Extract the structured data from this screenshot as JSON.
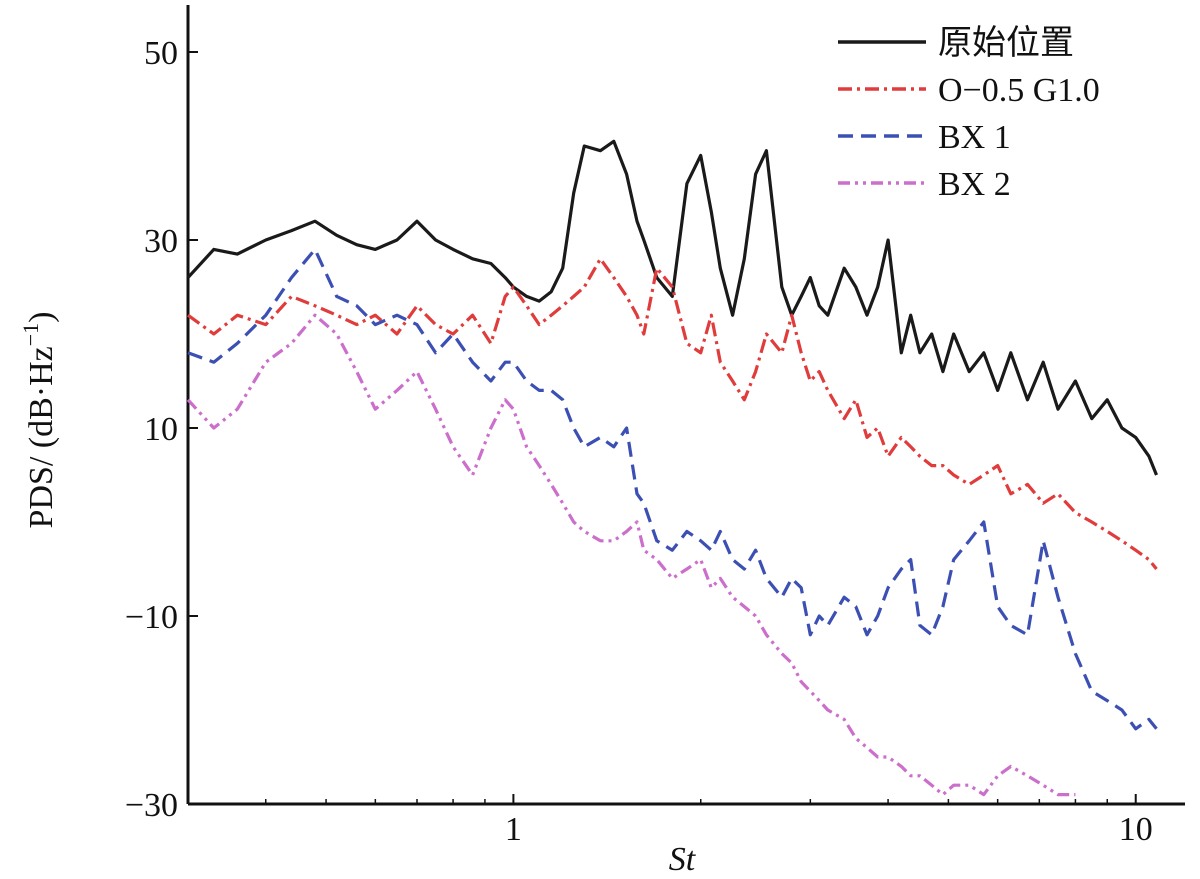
{
  "chart_data": {
    "type": "line",
    "xlabel": "St",
    "ylabel_main": "PDS/ (dB·Hz",
    "ylabel_sup": "−1",
    "ylabel_close": ")",
    "xscale": "log",
    "xlim": [
      0.3,
      12
    ],
    "ylim": [
      -30,
      55
    ],
    "x_ticks": [
      {
        "value": 1,
        "label": "1"
      },
      {
        "value": 10,
        "label": "10"
      }
    ],
    "y_ticks": [
      {
        "value": 50,
        "label": "50"
      },
      {
        "value": 30,
        "label": "30"
      },
      {
        "value": 10,
        "label": "10"
      },
      {
        "value": -10,
        "label": "−10"
      },
      {
        "value": -30,
        "label": "−30"
      }
    ],
    "grid": false,
    "legend_position": "top-right",
    "series": [
      {
        "name": "原始位置",
        "color": "#1a1a1a",
        "dash": "solid",
        "x": [
          0.3,
          0.33,
          0.36,
          0.4,
          0.44,
          0.48,
          0.52,
          0.56,
          0.6,
          0.65,
          0.7,
          0.75,
          0.8,
          0.86,
          0.92,
          0.97,
          1.0,
          1.05,
          1.1,
          1.15,
          1.2,
          1.25,
          1.3,
          1.38,
          1.45,
          1.52,
          1.58,
          1.62,
          1.7,
          1.8,
          1.9,
          2.0,
          2.08,
          2.15,
          2.25,
          2.35,
          2.45,
          2.55,
          2.7,
          2.8,
          2.9,
          3.0,
          3.1,
          3.2,
          3.4,
          3.55,
          3.7,
          3.85,
          4.0,
          4.2,
          4.35,
          4.5,
          4.7,
          4.9,
          5.1,
          5.4,
          5.7,
          6.0,
          6.3,
          6.7,
          7.1,
          7.5,
          8.0,
          8.5,
          9.0,
          9.5,
          10.0,
          10.5,
          10.8
        ],
        "y": [
          26,
          29,
          28.5,
          30,
          31,
          32,
          30.5,
          29.5,
          29,
          30,
          32,
          30,
          29,
          28,
          27.5,
          26,
          25,
          24,
          23.5,
          24.5,
          27,
          35,
          40,
          39.5,
          40.5,
          37,
          32,
          30,
          26,
          24,
          36,
          39,
          33,
          27,
          22,
          28,
          37,
          39.5,
          25,
          22,
          24,
          26,
          23,
          22,
          27,
          25,
          22,
          25,
          30,
          18,
          22,
          18,
          20,
          16,
          20,
          16,
          18,
          14,
          18,
          13,
          17,
          12,
          15,
          11,
          13,
          10,
          9,
          7,
          5
        ]
      },
      {
        "name": "O−0.5 G1.0",
        "color": "#e03c3c",
        "dash": "14,5,3,5",
        "x": [
          0.3,
          0.33,
          0.36,
          0.4,
          0.44,
          0.48,
          0.52,
          0.56,
          0.6,
          0.65,
          0.7,
          0.75,
          0.8,
          0.86,
          0.92,
          0.97,
          1.0,
          1.05,
          1.1,
          1.15,
          1.2,
          1.25,
          1.3,
          1.38,
          1.45,
          1.52,
          1.58,
          1.62,
          1.7,
          1.8,
          1.9,
          2.0,
          2.08,
          2.15,
          2.25,
          2.35,
          2.45,
          2.55,
          2.7,
          2.8,
          2.9,
          3.0,
          3.1,
          3.2,
          3.4,
          3.55,
          3.7,
          3.85,
          4.0,
          4.2,
          4.35,
          4.5,
          4.7,
          4.9,
          5.1,
          5.4,
          5.7,
          6.0,
          6.3,
          6.7,
          7.1,
          7.5,
          8.0,
          8.5,
          9.0,
          9.5,
          10.0,
          10.5,
          10.8
        ],
        "y": [
          22,
          20,
          22,
          21,
          24,
          23,
          22,
          21,
          22,
          20,
          23,
          21,
          20,
          22,
          19,
          24,
          25,
          23,
          21,
          22,
          23,
          24,
          25,
          28,
          26,
          24,
          22,
          20,
          27,
          25,
          19,
          18,
          22,
          17,
          15,
          13,
          16,
          20,
          18,
          22,
          18,
          15,
          16,
          14,
          11,
          13,
          9,
          10,
          7,
          9,
          8,
          7,
          6,
          6,
          5,
          4,
          5,
          6,
          3,
          4,
          2,
          3,
          1,
          0,
          -1,
          -2,
          -3,
          -4,
          -5
        ]
      },
      {
        "name": "BX 1",
        "color": "#3c50b4",
        "dash": "15,8",
        "x": [
          0.3,
          0.33,
          0.36,
          0.4,
          0.44,
          0.48,
          0.52,
          0.56,
          0.6,
          0.65,
          0.7,
          0.75,
          0.8,
          0.86,
          0.92,
          0.97,
          1.0,
          1.05,
          1.1,
          1.15,
          1.2,
          1.25,
          1.3,
          1.38,
          1.45,
          1.52,
          1.58,
          1.62,
          1.7,
          1.8,
          1.9,
          2.0,
          2.08,
          2.15,
          2.25,
          2.35,
          2.45,
          2.55,
          2.7,
          2.8,
          2.9,
          3.0,
          3.1,
          3.2,
          3.4,
          3.55,
          3.7,
          3.85,
          4.0,
          4.2,
          4.35,
          4.5,
          4.7,
          4.9,
          5.1,
          5.4,
          5.7,
          6.0,
          6.3,
          6.7,
          7.1,
          7.5,
          8.0,
          8.5,
          9.0,
          9.5,
          10.0,
          10.5,
          10.8
        ],
        "y": [
          18,
          17,
          19,
          22,
          26,
          29,
          24,
          23,
          21,
          22,
          21,
          18,
          20,
          17,
          15,
          17,
          17,
          15,
          14,
          14,
          13,
          10,
          8,
          9,
          8,
          10,
          3,
          2,
          -2,
          -3,
          -1,
          -2,
          -3,
          -1,
          -4,
          -5,
          -3,
          -6,
          -8,
          -6,
          -7,
          -12,
          -10,
          -11,
          -8,
          -9,
          -12,
          -10,
          -7,
          -5,
          -4,
          -11,
          -12,
          -9,
          -4,
          -2,
          0,
          -9,
          -11,
          -12,
          -2,
          -8,
          -14,
          -18,
          -19,
          -20,
          -22,
          -21,
          -22
        ]
      },
      {
        "name": "BX 2",
        "color": "#cc6ecc",
        "dash": "12,5,3,5,3,5",
        "x": [
          0.3,
          0.33,
          0.36,
          0.4,
          0.44,
          0.48,
          0.52,
          0.56,
          0.6,
          0.65,
          0.7,
          0.75,
          0.8,
          0.86,
          0.92,
          0.97,
          1.0,
          1.05,
          1.1,
          1.15,
          1.2,
          1.25,
          1.3,
          1.38,
          1.45,
          1.52,
          1.58,
          1.62,
          1.7,
          1.8,
          1.9,
          2.0,
          2.08,
          2.15,
          2.25,
          2.35,
          2.45,
          2.55,
          2.7,
          2.8,
          2.9,
          3.0,
          3.1,
          3.2,
          3.4,
          3.55,
          3.7,
          3.85,
          4.0,
          4.2,
          4.35,
          4.5,
          4.7,
          4.9,
          5.1,
          5.4,
          5.7,
          6.0,
          6.3,
          6.7,
          7.1,
          7.5,
          8.0
        ],
        "y": [
          13,
          10,
          12,
          17,
          19,
          22,
          20,
          16,
          12,
          14,
          16,
          12,
          8,
          5,
          10,
          13,
          12,
          8,
          6,
          4,
          2,
          0,
          -1,
          -2,
          -2,
          -1,
          0,
          -3,
          -4,
          -6,
          -5,
          -4,
          -7,
          -6,
          -8,
          -9,
          -10,
          -12,
          -14,
          -15,
          -17,
          -18,
          -19,
          -20,
          -21,
          -23,
          -24,
          -25,
          -25,
          -26,
          -27,
          -27,
          -28,
          -29,
          -28,
          -28,
          -29,
          -27,
          -26,
          -27,
          -28,
          -29,
          -29
        ]
      }
    ]
  }
}
